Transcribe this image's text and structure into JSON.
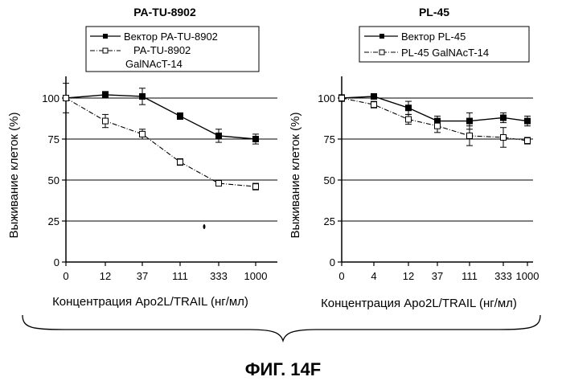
{
  "figure_label": "ФИГ. 14F",
  "chart_data": [
    {
      "type": "line",
      "title": "PA-TU-8902",
      "xlabel": "Концентрация Apo2L/TRAIL (нг/мл)",
      "ylabel": "Выживание клеток (%)",
      "categories": [
        "0",
        "12",
        "37",
        "111",
        "333",
        "1000"
      ],
      "yticks": [
        "0",
        "25",
        "50",
        "75",
        "100"
      ],
      "ylim": [
        0,
        100
      ],
      "grid": true,
      "legend": "top-right",
      "series": [
        {
          "name": "Вектор PA-TU-8902",
          "marker": "filled-square",
          "line": "solid",
          "values": [
            100,
            102,
            101,
            89,
            77,
            75
          ],
          "err": [
            9,
            2,
            5,
            2,
            4,
            3
          ]
        },
        {
          "name": "PA-TU-8902 GalNAcT-14",
          "name_line1": "PA-TU-8902",
          "name_line2": "GalNAcT-14",
          "marker": "open-square",
          "line": "dash-dot",
          "values": [
            100,
            86,
            78,
            61,
            48,
            46
          ],
          "err": [
            0,
            4,
            3,
            2,
            1,
            2
          ]
        }
      ]
    },
    {
      "type": "line",
      "title": "PL-45",
      "xlabel": "Концентрация Apo2L/TRAIL (нг/мл)",
      "ylabel": "Выживание клеток (%)",
      "categories": [
        "0",
        "4",
        "12",
        "37",
        "111",
        "333",
        "1000"
      ],
      "yticks": [
        "0",
        "25",
        "50",
        "75",
        "100"
      ],
      "ylim": [
        0,
        100
      ],
      "grid": true,
      "legend": "top-right",
      "series": [
        {
          "name": "Вектор PL-45",
          "marker": "filled-square",
          "line": "solid",
          "values": [
            100,
            101,
            94,
            86,
            86,
            88,
            86
          ],
          "err": [
            2,
            1,
            4,
            3,
            5,
            3,
            3
          ]
        },
        {
          "name": "PL-45 GalNAcT-14",
          "marker": "open-square",
          "line": "dash-dot",
          "values": [
            100,
            96,
            87,
            83,
            77,
            76,
            74
          ],
          "err": [
            2,
            2,
            3,
            4,
            6,
            6,
            2
          ]
        }
      ]
    }
  ]
}
